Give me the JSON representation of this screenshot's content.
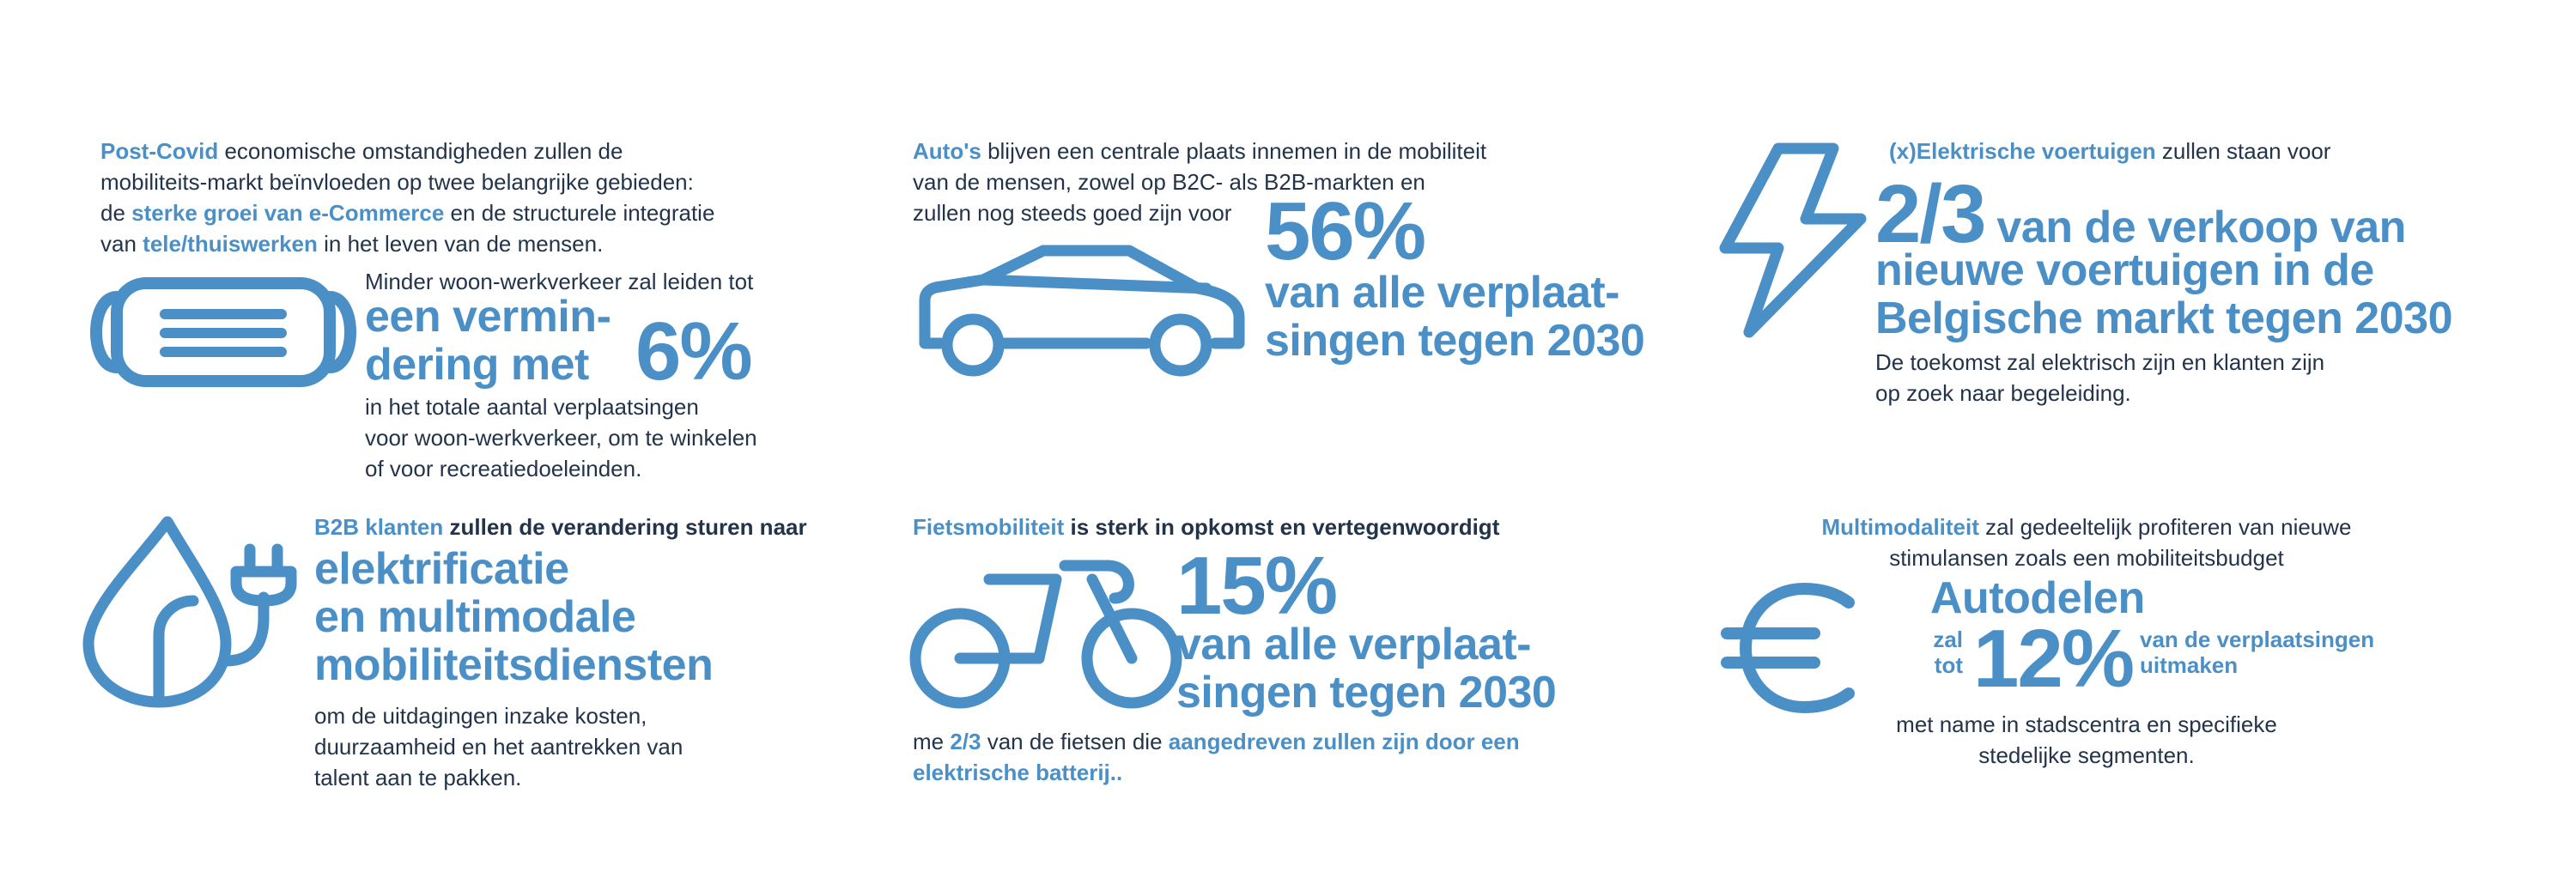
{
  "colors": {
    "accent": "#4b8fc7",
    "text": "#23344a",
    "background": "#ffffff"
  },
  "panel1": {
    "icon": "face-mask-icon",
    "intro_highlight": "Post-Covid",
    "intro_rest1": " economische omstandigheden zullen de",
    "intro_line2": "mobiliteits-markt beïnvloeden op twee belangrijke gebieden:",
    "intro_line3_pre": "de ",
    "intro_line3_highlight": "sterke groei van e-Commerce",
    "intro_line3_post": " en de structurele integratie",
    "intro_line4_pre": "van ",
    "intro_line4_highlight": "tele/thuiswerken",
    "intro_line4_post": " in het leven van de mensen.",
    "lead": "Minder woon-werkverkeer zal leiden tot",
    "big_line1": "een vermin-",
    "big_line2": "dering met",
    "percent": "6%",
    "detail_line1": "in het totale aantal verplaatsingen",
    "detail_line2": "voor woon-werkverkeer, om te winkelen",
    "detail_line3": "of voor recreatiedoeleinden."
  },
  "panel2": {
    "icon": "car-icon",
    "intro_highlight": "Auto's",
    "intro_rest1": " blijven een centrale plaats innemen in de mobiliteit",
    "intro_line2": "van de mensen, zowel op B2C- als B2B-markten en",
    "intro_line3": "zullen nog steeds goed zijn voor",
    "percent": "56%",
    "big_line1": "van alle verplaat-",
    "big_line2": "singen tegen 2030"
  },
  "panel3": {
    "icon": "lightning-bolt-icon",
    "intro_highlight": "(x)Elektrische voertuigen",
    "intro_rest": " zullen staan voor",
    "fraction": "2/3",
    "big_line1": " van de verkoop van",
    "big_line2": "nieuwe voertuigen in de",
    "big_line3": "Belgische markt tegen 2030",
    "detail_line1": "De toekomst zal elektrisch zijn en klanten zijn",
    "detail_line2": "op zoek naar begeleiding."
  },
  "panel4": {
    "icon": "eco-plug-icon",
    "intro_highlight": "B2B klanten",
    "intro_rest": " zullen de verandering sturen naar",
    "big_line1": "elektrificatie",
    "big_line2": "en multimodale",
    "big_line3": "mobiliteitsdiensten",
    "detail_line1": "om de uitdagingen inzake kosten,",
    "detail_line2": "duurzaamheid en het aantrekken van",
    "detail_line3": "talent aan te pakken."
  },
  "panel5": {
    "icon": "bicycle-icon",
    "intro_highlight": "Fietsmobiliteit",
    "intro_rest": " is sterk in opkomst en vertegenwoordigt",
    "percent": "15%",
    "big_line1": "van alle verplaat-",
    "big_line2": "singen tegen 2030",
    "detail_pre": "me ",
    "detail_fraction": "2/3",
    "detail_mid": " van de fietsen die ",
    "detail_highlight1": "aangedreven zullen zijn door een",
    "detail_highlight2": "elektrische batterij.."
  },
  "panel6": {
    "icon": "euro-icon",
    "intro_highlight": "Multimodaliteit",
    "intro_rest": " zal gedeeltelijk profiteren van nieuwe",
    "intro_line2": "stimulansen zoals een mobiliteitsbudget",
    "big": "Autodelen",
    "small_left1": "zal",
    "small_left2": "tot",
    "percent": "12%",
    "small_right1": "van de verplaatsingen",
    "small_right2": "uitmaken",
    "detail_line1": "met name in stadscentra en specifieke",
    "detail_line2": "stedelijke segmenten."
  }
}
